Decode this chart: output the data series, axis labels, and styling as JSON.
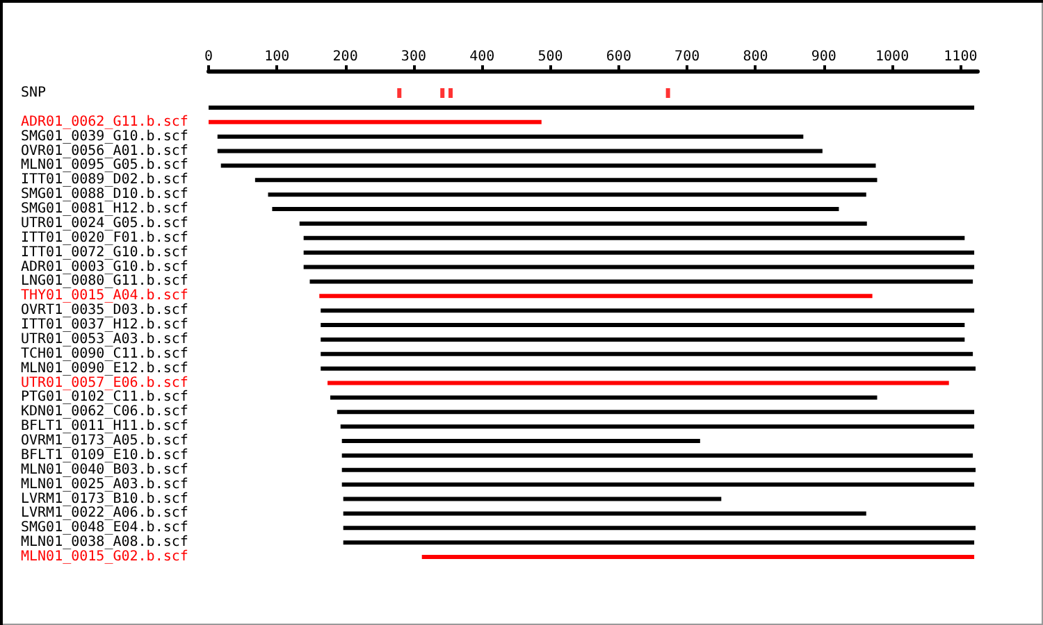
{
  "chart_data": {
    "type": "bar",
    "orientation": "horizontal",
    "categories": [
      "SNP",
      null,
      "ADR01_0062_G11.b.scf",
      "SMG01_0039_G10.b.scf",
      "OVR01_0056_A01.b.scf",
      "MLN01_0095_G05.b.scf",
      "ITT01_0089_D02.b.scf",
      "SMG01_0088_D10.b.scf",
      "SMG01_0081_H12.b.scf",
      "UTR01_0024_G05.b.scf",
      "ITT01_0020_F01.b.scf",
      "ITT01_0072_G10.b.scf",
      "ADR01_0003_G10.b.scf",
      "LNG01_0080_G11.b.scf",
      "THY01_0015_A04.b.scf",
      "OVRT1_0035_D03.b.scf",
      "ITT01_0037_H12.b.scf",
      "UTR01_0053_A03.b.scf",
      "TCH01_0090_C11.b.scf",
      "MLN01_0090_E12.b.scf",
      "UTR01_0057_E06.b.scf",
      "PTG01_0102_C11.b.scf",
      "KDN01_0062_C06.b.scf",
      "BFLT1_0011_H11.b.scf",
      "OVRM1_0173_A05.b.scf",
      "BFLT1_0109_E10.b.scf",
      "MLN01_0040_B03.b.scf",
      "MLN01_0025_A03.b.scf",
      "LVRM1_0173_B10.b.scf",
      "LVRM1_0022_A06.b.scf",
      "SMG01_0048_E04.b.scf",
      "MLN01_0038_A08.b.scf",
      "MLN01_0015_G02.b.scf"
    ],
    "xlim": [
      0,
      1125
    ],
    "xticks": [
      0,
      100,
      200,
      300,
      400,
      500,
      600,
      700,
      800,
      900,
      1000,
      1100
    ],
    "series": [
      {
        "base": [
          null,
          0,
          0,
          13,
          13,
          18,
          68,
          87,
          93,
          133,
          139,
          139,
          139,
          148,
          162,
          164,
          164,
          164,
          164,
          164,
          174,
          178,
          188,
          193,
          195,
          195,
          195,
          195,
          197,
          197,
          197,
          197,
          312
        ],
        "values": [
          null,
          1120,
          487,
          857,
          885,
          958,
          910,
          875,
          829,
          830,
          967,
          981,
          981,
          970,
          809,
          956,
          942,
          942,
          954,
          958,
          909,
          800,
          932,
          927,
          524,
          923,
          927,
          925,
          553,
          765,
          925,
          923,
          808
        ],
        "colors": [
          null,
          "#000000",
          "#ff0000",
          "#000000",
          "#000000",
          "#000000",
          "#000000",
          "#000000",
          "#000000",
          "#000000",
          "#000000",
          "#000000",
          "#000000",
          "#000000",
          "#ff0000",
          "#000000",
          "#000000",
          "#000000",
          "#000000",
          "#000000",
          "#ff0000",
          "#000000",
          "#000000",
          "#000000",
          "#000000",
          "#000000",
          "#000000",
          "#000000",
          "#000000",
          "#000000",
          "#000000",
          "#000000",
          "#ff0000"
        ]
      },
      {
        "type": "scatter",
        "x": [
          "SNP",
          "SNP",
          "SNP",
          "SNP"
        ],
        "values": [
          279,
          342,
          354,
          672
        ],
        "color": "#ff0000",
        "marker": "square"
      }
    ]
  }
}
